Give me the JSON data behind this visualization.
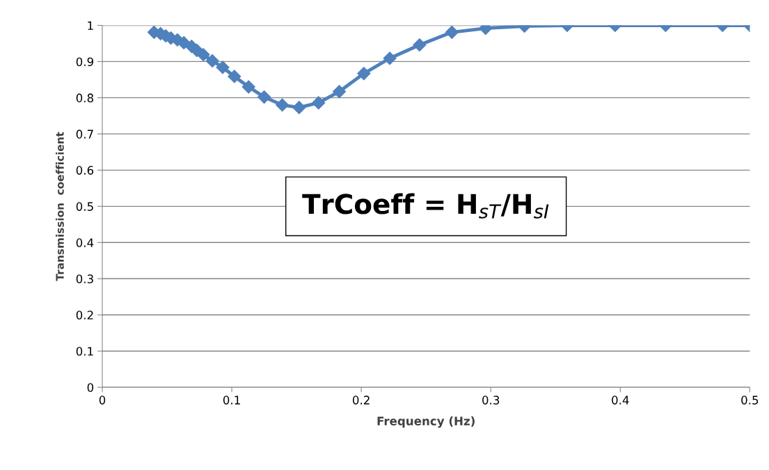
{
  "chart_data": {
    "type": "line",
    "xlabel": "Frequency (Hz)",
    "ylabel": "Transmission  coefficient",
    "annotations": [
      "TrCoeff = H$_{sT}$/H$_{sI}$"
    ],
    "series": [
      {
        "color": "#4f81bd",
        "x": [
          0.04,
          0.045,
          0.049,
          0.053,
          0.058,
          0.063,
          0.069,
          0.073,
          0.078,
          0.085,
          0.093,
          0.102,
          0.113,
          0.125,
          0.139,
          0.152,
          0.167,
          0.183,
          0.202,
          0.222,
          0.245,
          0.27,
          0.296,
          0.326,
          0.359,
          0.396,
          0.435,
          0.479,
          0.5
        ],
        "values": [
          0.981,
          0.977,
          0.971,
          0.965,
          0.96,
          0.952,
          0.942,
          0.931,
          0.919,
          0.902,
          0.884,
          0.859,
          0.83,
          0.802,
          0.78,
          0.773,
          0.786,
          0.817,
          0.867,
          0.909,
          0.946,
          0.981,
          0.992,
          0.998,
          1.0,
          1.0,
          1.0,
          1.0,
          1.0
        ]
      }
    ],
    "xlim": [
      0,
      0.5
    ],
    "xticks": [
      0,
      0.1,
      0.2,
      0.3,
      0.4,
      0.5
    ],
    "ylim": [
      0,
      1
    ],
    "yticks": [
      0,
      0.1,
      0.2,
      0.3,
      0.4,
      0.5,
      0.6,
      0.7,
      0.8,
      0.9,
      1
    ],
    "grid": "y",
    "marker": "diamond",
    "line_style": "solid"
  }
}
